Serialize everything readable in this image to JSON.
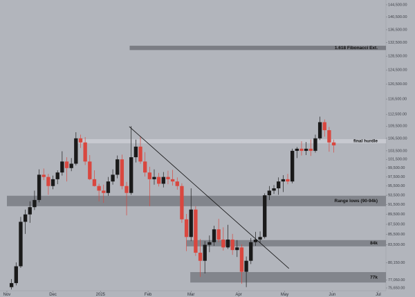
{
  "chart_data": {
    "type": "candlestick",
    "log_scale": true,
    "up_color": "#1a1a1a",
    "down_color": "#d9473f",
    "xlim": [
      -4.5,
      247
    ],
    "ylim": [
      75170,
      146100
    ],
    "xticks": [
      {
        "value": 0,
        "label": "Nov"
      },
      {
        "value": 30,
        "label": "Dec"
      },
      {
        "value": 61,
        "label": "2025"
      },
      {
        "value": 92,
        "label": "Feb"
      },
      {
        "value": 120,
        "label": "Mar"
      },
      {
        "value": 151,
        "label": "Apr"
      },
      {
        "value": 181,
        "label": "May"
      },
      {
        "value": 212,
        "label": "Jun"
      },
      {
        "value": 242,
        "label": "Jul"
      }
    ],
    "yticks": [
      {
        "value": 144500,
        "label": "144,500.00"
      },
      {
        "value": 140500,
        "label": "140,500.00"
      },
      {
        "value": 136500,
        "label": "136,500.00"
      },
      {
        "value": 132500,
        "label": "132,500.00"
      },
      {
        "value": 128500,
        "label": "128,500.00"
      },
      {
        "value": 124500,
        "label": "124,500.00"
      },
      {
        "value": 120500,
        "label": "120,500.00"
      },
      {
        "value": 116500,
        "label": "116,500.00"
      },
      {
        "value": 112500,
        "label": "112,500.00"
      },
      {
        "value": 109500,
        "label": "109,500.00"
      },
      {
        "value": 106500,
        "label": "106,500.00"
      },
      {
        "value": 103500,
        "label": "103,500.00"
      },
      {
        "value": 101500,
        "label": "101,500.00"
      },
      {
        "value": 99500,
        "label": "99,500.00"
      },
      {
        "value": 97500,
        "label": "97,500.00"
      },
      {
        "value": 95500,
        "label": "95,500.00"
      },
      {
        "value": 93500,
        "label": "93,500.00"
      },
      {
        "value": 91500,
        "label": "91,500.00"
      },
      {
        "value": 89500,
        "label": "89,500.00"
      },
      {
        "value": 87500,
        "label": "87,500.00"
      },
      {
        "value": 85500,
        "label": "85,500.00"
      },
      {
        "value": 83500,
        "label": "83,500.00"
      },
      {
        "value": 80150,
        "label": "80,150.00"
      },
      {
        "value": 77050,
        "label": "77,050.00"
      },
      {
        "value": 75650,
        "label": "75,650.00"
      }
    ],
    "x": [
      3,
      6,
      9,
      12,
      15,
      18,
      21,
      24,
      27,
      30,
      33,
      36,
      39,
      42,
      45,
      48,
      51,
      54,
      57,
      60,
      63,
      66,
      69,
      72,
      75,
      78,
      81,
      84,
      87,
      90,
      93,
      96,
      99,
      102,
      105,
      108,
      111,
      114,
      117,
      120,
      123,
      126,
      129,
      132,
      135,
      138,
      141,
      144,
      147,
      150,
      153,
      156,
      159,
      162,
      165,
      168,
      171,
      174,
      177,
      180,
      183,
      186,
      189,
      192,
      195,
      198,
      201,
      204,
      207,
      210,
      213
    ],
    "open": [
      75800,
      76500,
      79500,
      88000,
      89500,
      91000,
      92500,
      98000,
      97500,
      95500,
      97000,
      98500,
      101000,
      99500,
      100500,
      106500,
      105500,
      101000,
      97000,
      95500,
      94500,
      94000,
      96500,
      98000,
      101500,
      95500,
      94000,
      102000,
      104500,
      101000,
      98500,
      97000,
      97500,
      96000,
      97500,
      97000,
      96500,
      95500,
      88500,
      85000,
      90500,
      82000,
      80500,
      83500,
      84000,
      86500,
      84500,
      83000,
      84500,
      82500,
      83000,
      78500,
      80500,
      84000,
      84500,
      85000,
      93500,
      94500,
      95000,
      96500,
      97000,
      96500,
      103500,
      104000,
      103500,
      104000,
      103500,
      106500,
      110500,
      108500,
      105500
    ],
    "high": [
      77200,
      80200,
      89000,
      90500,
      92200,
      94500,
      99200,
      99400,
      98200,
      97800,
      99000,
      103400,
      102000,
      101800,
      108000,
      107400,
      106800,
      102500,
      99000,
      96000,
      95800,
      97500,
      99200,
      102400,
      102600,
      96400,
      109500,
      106200,
      106900,
      103200,
      99800,
      99200,
      98400,
      98600,
      98900,
      99100,
      97400,
      96100,
      89600,
      95000,
      91200,
      84600,
      84200,
      85300,
      87200,
      88600,
      86900,
      87400,
      85600,
      84400,
      83600,
      81300,
      84800,
      86000,
      86100,
      93900,
      95500,
      95700,
      97400,
      97900,
      98200,
      104000,
      104400,
      105800,
      105600,
      106200,
      107400,
      111900,
      111200,
      109300,
      106200
    ],
    "low": [
      75400,
      76100,
      79200,
      85600,
      87800,
      90400,
      92000,
      96800,
      93600,
      94800,
      95900,
      97800,
      96500,
      98800,
      100100,
      104200,
      100200,
      96800,
      95400,
      92200,
      91900,
      93400,
      95800,
      97200,
      94800,
      89300,
      93600,
      100800,
      100500,
      97600,
      91200,
      95800,
      95400,
      95200,
      95900,
      95600,
      94700,
      87800,
      82300,
      84200,
      81400,
      77600,
      78200,
      82100,
      83300,
      84000,
      82400,
      82700,
      81600,
      81200,
      76400,
      75800,
      79900,
      83300,
      83900,
      84700,
      92500,
      93800,
      93600,
      94200,
      95900,
      96100,
      101800,
      102400,
      102500,
      102300,
      103100,
      106100,
      106900,
      103300,
      103100
    ],
    "close": [
      76500,
      79500,
      88000,
      89500,
      91000,
      92500,
      98000,
      97500,
      95500,
      97000,
      98500,
      101000,
      99500,
      100500,
      106500,
      105500,
      101000,
      97000,
      95500,
      94500,
      94000,
      96500,
      98000,
      101500,
      95500,
      94000,
      102000,
      104500,
      101000,
      98500,
      97000,
      97500,
      96000,
      97500,
      97000,
      96500,
      95500,
      88500,
      85000,
      90500,
      82000,
      80500,
      83500,
      84000,
      86500,
      84500,
      83000,
      84500,
      82500,
      83000,
      78500,
      80500,
      84000,
      84500,
      85000,
      93500,
      94500,
      95000,
      96500,
      97000,
      96500,
      103500,
      104000,
      103500,
      104000,
      103500,
      106500,
      110500,
      108500,
      105500,
      104800
    ],
    "zones": [
      {
        "label": "1.618 Fibonacci Ext.",
        "x_start": 80,
        "y": [
          130300,
          131600
        ],
        "color": "#74777d"
      },
      {
        "label": "final hurdle",
        "x_start": 45,
        "y": [
          105300,
          106300
        ],
        "color": "#c9cbd1"
      },
      {
        "label": "Range lows (90-94k)",
        "x_start": 0,
        "y": [
          91200,
          93400
        ],
        "color": "#7c7f86"
      },
      {
        "label": "84k",
        "x_start": 117,
        "y": [
          83200,
          84400
        ],
        "color": "#7c7f86"
      },
      {
        "label": "77k",
        "x_start": 119.5,
        "y": [
          76600,
          78450
        ],
        "color": "#7c7f86"
      }
    ],
    "trendline": {
      "x": [
        79.7,
        183.8
      ],
      "y": [
        109400,
        79100
      ],
      "color": "#111111"
    }
  }
}
